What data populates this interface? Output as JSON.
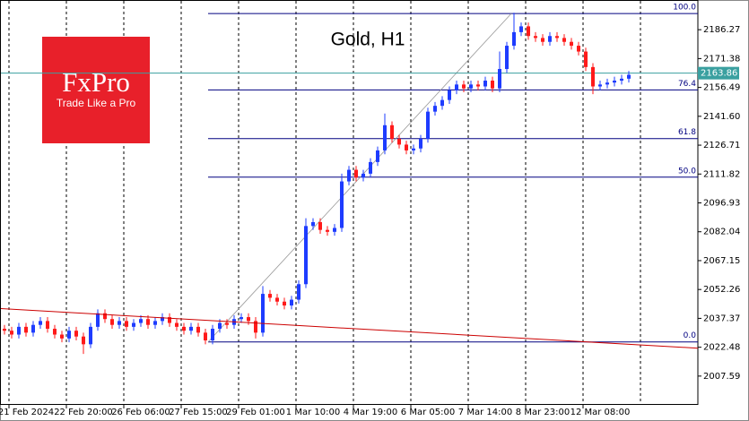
{
  "chart_data": {
    "type": "candlestick",
    "title": "Gold, H1",
    "logo": {
      "brand": "FxPro",
      "tagline": "Trade Like a Pro",
      "color": "#e8202a"
    },
    "categories": [
      null,
      null,
      null,
      "21 Feb 2024",
      null,
      null,
      null,
      null,
      null,
      null,
      null,
      "22 Feb 20:00",
      null,
      null,
      null,
      null,
      null,
      null,
      null,
      "26 Feb 06:00",
      null,
      null,
      null,
      null,
      null,
      null,
      null,
      "27 Feb 15:00",
      null,
      null,
      null,
      null,
      null,
      null,
      null,
      "29 Feb 01:00",
      null,
      null,
      null,
      null,
      null,
      null,
      null,
      "1 Mar 10:00",
      null,
      null,
      null,
      null,
      null,
      null,
      null,
      "4 Mar 19:00",
      null,
      null,
      null,
      null,
      null,
      null,
      null,
      "6 Mar 05:00",
      null,
      null,
      null,
      null,
      null,
      null,
      null,
      "7 Mar 14:00",
      null,
      null,
      null,
      null,
      null,
      null,
      null,
      "8 Mar 23:00",
      null,
      null,
      null,
      null,
      null,
      null,
      null,
      "12 Mar 08:00",
      null,
      null,
      null,
      null
    ],
    "open": [
      2032,
      2031,
      2029,
      2033,
      2030,
      2034,
      2036,
      2032,
      2029,
      2027,
      2031,
      2028,
      2024,
      2033,
      2040,
      2037,
      2034,
      2036,
      2033,
      2035,
      2037,
      2034,
      2036,
      2038,
      2035,
      2033,
      2031,
      2033,
      2030,
      2026,
      2032,
      2035,
      2034,
      2037,
      2038,
      2036,
      2030,
      2050,
      2048,
      2046,
      2044,
      2047,
      2055,
      2085,
      2087,
      2083,
      2082,
      2084,
      2108,
      2114,
      2110,
      2112,
      2118,
      2124,
      2137,
      2130,
      2127,
      2124,
      2125,
      2130,
      2144,
      2147,
      2150,
      2155,
      2158,
      2156,
      2158,
      2157,
      2160,
      2156,
      2166,
      2178,
      2185,
      2188,
      2183,
      2182,
      2180,
      2183,
      2182,
      2180,
      2178,
      2175,
      2167,
      2157,
      2158,
      2159,
      2160,
      2161
    ],
    "high": [
      2034,
      2033,
      2035,
      2035,
      2036,
      2038,
      2038,
      2034,
      2031,
      2033,
      2033,
      2030,
      2035,
      2042,
      2042,
      2039,
      2038,
      2038,
      2037,
      2039,
      2039,
      2038,
      2040,
      2040,
      2037,
      2035,
      2035,
      2035,
      2032,
      2034,
      2037,
      2037,
      2039,
      2040,
      2040,
      2038,
      2054,
      2052,
      2050,
      2048,
      2049,
      2057,
      2089,
      2089,
      2089,
      2085,
      2086,
      2112,
      2116,
      2116,
      2114,
      2120,
      2126,
      2143,
      2139,
      2132,
      2129,
      2127,
      2132,
      2146,
      2149,
      2152,
      2157,
      2160,
      2160,
      2160,
      2160,
      2162,
      2162,
      2175,
      2180,
      2195,
      2190,
      2190,
      2185,
      2184,
      2185,
      2185,
      2184,
      2182,
      2180,
      2177,
      2169,
      2160,
      2161,
      2162,
      2163,
      2165
    ],
    "low": [
      2029,
      2027,
      2027,
      2028,
      2028,
      2032,
      2030,
      2027,
      2025,
      2025,
      2026,
      2019,
      2022,
      2031,
      2035,
      2032,
      2032,
      2031,
      2031,
      2033,
      2032,
      2032,
      2034,
      2033,
      2031,
      2029,
      2029,
      2028,
      2024,
      2024,
      2030,
      2032,
      2032,
      2035,
      2034,
      2027,
      2028,
      2046,
      2044,
      2042,
      2042,
      2045,
      2053,
      2083,
      2081,
      2080,
      2080,
      2082,
      2106,
      2108,
      2108,
      2110,
      2116,
      2122,
      2128,
      2125,
      2122,
      2122,
      2123,
      2128,
      2142,
      2145,
      2148,
      2153,
      2154,
      2154,
      2155,
      2155,
      2154,
      2154,
      2164,
      2176,
      2183,
      2181,
      2180,
      2178,
      2178,
      2180,
      2178,
      2176,
      2173,
      2165,
      2153,
      2155,
      2156,
      2157,
      2158,
      2159
    ],
    "close": [
      2031,
      2029,
      2033,
      2030,
      2034,
      2036,
      2032,
      2029,
      2027,
      2031,
      2028,
      2024,
      2033,
      2040,
      2037,
      2034,
      2036,
      2033,
      2035,
      2037,
      2034,
      2036,
      2038,
      2035,
      2033,
      2031,
      2033,
      2030,
      2026,
      2032,
      2035,
      2034,
      2037,
      2038,
      2036,
      2030,
      2050,
      2048,
      2046,
      2044,
      2047,
      2055,
      2085,
      2087,
      2083,
      2082,
      2084,
      2108,
      2114,
      2110,
      2112,
      2118,
      2124,
      2137,
      2130,
      2127,
      2124,
      2125,
      2130,
      2144,
      2147,
      2150,
      2155,
      2158,
      2156,
      2158,
      2157,
      2160,
      2156,
      2166,
      2178,
      2185,
      2188,
      2183,
      2182,
      2180,
      2183,
      2182,
      2180,
      2178,
      2175,
      2167,
      2157,
      2158,
      2159,
      2160,
      2161,
      2163
    ],
    "up_color": "#1e3cff",
    "down_color": "#ff1a1a",
    "ylim": [
      1992.74,
      2201.59
    ],
    "yticks": [
      2007.59,
      2022.48,
      2037.37,
      2052.26,
      2067.15,
      2082.04,
      2096.93,
      2111.82,
      2126.71,
      {
        "value": 2141.6,
        "label": "2141.60"
      },
      2156.49,
      2171.38,
      2186.27
    ],
    "current_price": 2163.86,
    "fib": {
      "labels": [
        "100.0",
        "76.4",
        "61.8",
        "50.0",
        "0.0"
      ],
      "prices": [
        2194.6,
        2155.2,
        2130.1,
        2110.2,
        2025.2
      ],
      "color": "#000080"
    },
    "trendline": {
      "start": 2042.4,
      "end": 2021.98,
      "color": "#cc0000"
    }
  }
}
